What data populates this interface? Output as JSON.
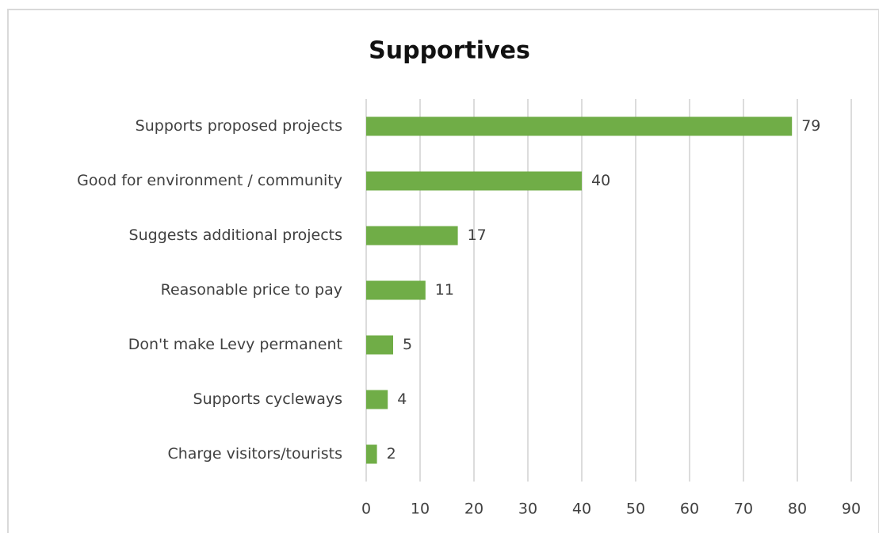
{
  "chart_data": {
    "type": "bar",
    "orientation": "horizontal",
    "title": "Supportives",
    "categories": [
      "Supports proposed projects",
      "Good for environment / community",
      "Suggests additional projects",
      "Reasonable price to pay",
      "Don't make Levy permanent",
      "Supports cycleways",
      "Charge visitors/tourists"
    ],
    "values": [
      79,
      40,
      17,
      11,
      5,
      4,
      2
    ],
    "color": "#70ad47",
    "xlim": [
      0,
      90
    ],
    "xticks": [
      0,
      10,
      20,
      30,
      40,
      50,
      60,
      70,
      80,
      90
    ],
    "grid": true
  }
}
